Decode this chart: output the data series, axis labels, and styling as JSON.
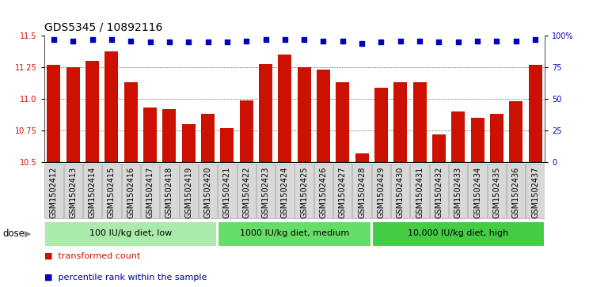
{
  "title": "GDS5345 / 10892116",
  "samples": [
    "GSM1502412",
    "GSM1502413",
    "GSM1502414",
    "GSM1502415",
    "GSM1502416",
    "GSM1502417",
    "GSM1502418",
    "GSM1502419",
    "GSM1502420",
    "GSM1502421",
    "GSM1502422",
    "GSM1502423",
    "GSM1502424",
    "GSM1502425",
    "GSM1502426",
    "GSM1502427",
    "GSM1502428",
    "GSM1502429",
    "GSM1502430",
    "GSM1502431",
    "GSM1502432",
    "GSM1502433",
    "GSM1502434",
    "GSM1502435",
    "GSM1502436",
    "GSM1502437"
  ],
  "bar_values": [
    11.27,
    11.25,
    11.3,
    11.38,
    11.13,
    10.93,
    10.92,
    10.8,
    10.88,
    10.77,
    10.99,
    11.28,
    11.35,
    11.25,
    11.23,
    11.13,
    10.57,
    11.09,
    11.13,
    11.13,
    10.72,
    10.9,
    10.85,
    10.88,
    10.98,
    11.27
  ],
  "percentile_values": [
    97,
    96,
    97,
    97,
    96,
    95,
    95,
    95,
    95,
    95,
    96,
    97,
    97,
    97,
    96,
    96,
    94,
    95,
    96,
    96,
    95,
    95,
    96,
    96,
    96,
    97
  ],
  "ylim_left": [
    10.5,
    11.5
  ],
  "ylim_right": [
    0,
    100
  ],
  "yticks_left": [
    10.5,
    10.75,
    11.0,
    11.25,
    11.5
  ],
  "yticks_right": [
    0,
    25,
    50,
    75,
    100
  ],
  "ytick_labels_right": [
    "0",
    "25",
    "50",
    "75",
    "100%"
  ],
  "groups": [
    {
      "label": "100 IU/kg diet, low",
      "start": 0,
      "end": 9
    },
    {
      "label": "1000 IU/kg diet, medium",
      "start": 9,
      "end": 17
    },
    {
      "label": "10,000 IU/kg diet, high",
      "start": 17,
      "end": 26
    }
  ],
  "bar_color": "#CC1100",
  "dot_color": "#0000BB",
  "plot_bg_color": "#FFFFFF",
  "tick_label_bg": "#D0D0D0",
  "group_color_light": "#AAEAAA",
  "group_color_mid": "#66DD66",
  "group_color_dark": "#44CC44",
  "legend_items": [
    {
      "label": "transformed count",
      "color": "#CC1100"
    },
    {
      "label": "percentile rank within the sample",
      "color": "#0000BB"
    }
  ],
  "dose_label": "dose",
  "title_fontsize": 10,
  "tick_fontsize": 7,
  "group_label_fontsize": 8,
  "legend_fontsize": 8
}
